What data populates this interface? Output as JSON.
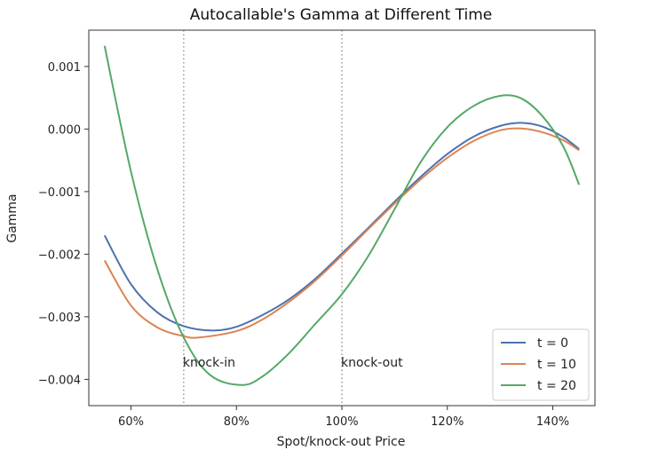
{
  "chart_data": {
    "type": "line",
    "title": "Autocallable's Gamma at Different Time",
    "xlabel": "Spot/knock-out Price",
    "ylabel": "Gamma",
    "xlim": [
      0.52,
      1.48
    ],
    "ylim": [
      -0.00442,
      0.00158
    ],
    "x_ticks": [
      {
        "value": 0.6,
        "label": "60%"
      },
      {
        "value": 0.8,
        "label": "80%"
      },
      {
        "value": 1.0,
        "label": "100%"
      },
      {
        "value": 1.2,
        "label": "120%"
      },
      {
        "value": 1.4,
        "label": "140%"
      }
    ],
    "y_ticks": [
      {
        "value": 0.001,
        "label": "0.001"
      },
      {
        "value": 0.0,
        "label": "0.000"
      },
      {
        "value": -0.001,
        "label": "−0.001"
      },
      {
        "value": -0.002,
        "label": "−0.002"
      },
      {
        "value": -0.003,
        "label": "−0.003"
      },
      {
        "value": -0.004,
        "label": "−0.004"
      }
    ],
    "grid": false,
    "legend_position": "lower-right",
    "vlines": [
      {
        "x": 0.7,
        "label": "knock-in"
      },
      {
        "x": 1.0,
        "label": "knock-out"
      }
    ],
    "series": [
      {
        "name": "t = 0",
        "color": "#4c72b0",
        "x": [
          0.55,
          0.6,
          0.65,
          0.7,
          0.755,
          0.8,
          0.85,
          0.9,
          0.95,
          1.0,
          1.05,
          1.1,
          1.15,
          1.2,
          1.25,
          1.3,
          1.34,
          1.38,
          1.42,
          1.45
        ],
        "y": [
          -0.0017,
          -0.00248,
          -0.00293,
          -0.00315,
          -0.00322,
          -0.00316,
          -0.00297,
          -0.00272,
          -0.00239,
          -0.00199,
          -0.00158,
          -0.00116,
          -0.00076,
          -0.0004,
          -0.00012,
          5e-05,
          0.0001,
          4e-05,
          -0.00013,
          -0.00032
        ]
      },
      {
        "name": "t = 10",
        "color": "#dd8452",
        "x": [
          0.55,
          0.6,
          0.65,
          0.7,
          0.73,
          0.8,
          0.85,
          0.9,
          0.95,
          1.0,
          1.05,
          1.1,
          1.15,
          1.2,
          1.25,
          1.3,
          1.34,
          1.38,
          1.42,
          1.45
        ],
        "y": [
          -0.0021,
          -0.00282,
          -0.00317,
          -0.00331,
          -0.00333,
          -0.00323,
          -0.00304,
          -0.00276,
          -0.00242,
          -0.00202,
          -0.0016,
          -0.00119,
          -0.0008,
          -0.00046,
          -0.00019,
          -2e-05,
          1e-05,
          -5e-05,
          -0.00018,
          -0.00034
        ]
      },
      {
        "name": "t = 20",
        "color": "#55a868",
        "x": [
          0.55,
          0.6,
          0.65,
          0.7,
          0.75,
          0.81,
          0.85,
          0.9,
          0.95,
          1.0,
          1.05,
          1.1,
          1.15,
          1.2,
          1.25,
          1.3,
          1.34,
          1.38,
          1.42,
          1.45
        ],
        "y": [
          0.00133,
          -0.00068,
          -0.00224,
          -0.00333,
          -0.00393,
          -0.00409,
          -0.00395,
          -0.00358,
          -0.00311,
          -0.00264,
          -0.00203,
          -0.00128,
          -0.00052,
          3e-05,
          0.00037,
          0.00053,
          0.00049,
          0.00021,
          -0.00028,
          -0.00089
        ]
      }
    ]
  }
}
